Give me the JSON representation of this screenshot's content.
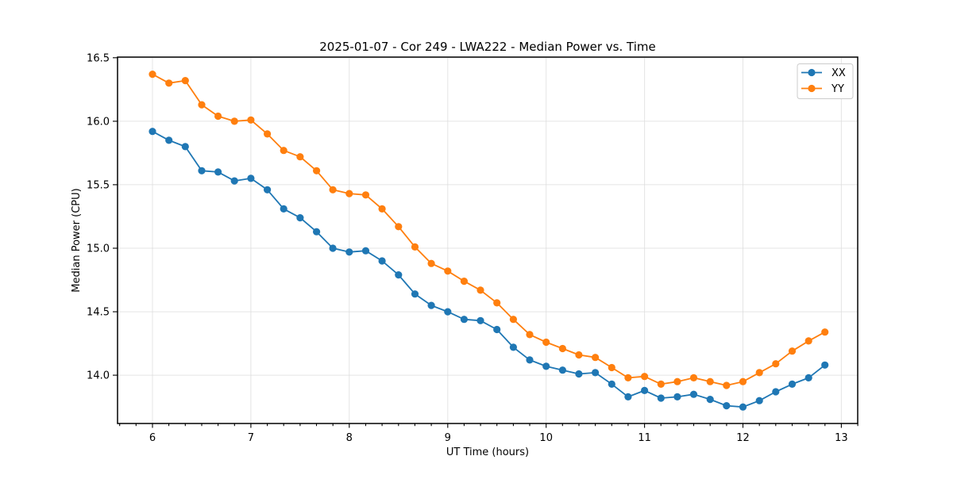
{
  "chart_data": {
    "type": "line",
    "title": "2025-01-07 - Cor 249 - LWA222 - Median Power vs. Time",
    "xlabel": "UT Time (hours)",
    "ylabel": "Median Power (CPU)",
    "xlim": [
      5.645,
      13.166
    ],
    "ylim": [
      13.62,
      16.505
    ],
    "x_tick_labels": [
      "6",
      "7",
      "8",
      "9",
      "10",
      "11",
      "12",
      "13"
    ],
    "y_tick_labels": [
      "14.0",
      "14.5",
      "15.0",
      "15.5",
      "16.0",
      "16.5"
    ],
    "minor_x_tick_step": 0.16667,
    "grid": true,
    "legend_position": "upper right",
    "marker": "circle",
    "x": [
      6.0,
      6.167,
      6.333,
      6.5,
      6.667,
      6.833,
      7.0,
      7.167,
      7.333,
      7.5,
      7.667,
      7.833,
      8.0,
      8.167,
      8.333,
      8.5,
      8.667,
      8.833,
      9.0,
      9.167,
      9.333,
      9.5,
      9.667,
      9.833,
      10.0,
      10.167,
      10.333,
      10.5,
      10.667,
      10.833,
      11.0,
      11.167,
      11.333,
      11.5,
      11.667,
      11.833,
      12.0,
      12.167,
      12.333,
      12.5,
      12.667,
      12.833
    ],
    "series": [
      {
        "name": "XX",
        "color": "#1f77b4",
        "values": [
          15.92,
          15.85,
          15.8,
          15.61,
          15.6,
          15.53,
          15.55,
          15.46,
          15.31,
          15.24,
          15.13,
          15.0,
          14.97,
          14.98,
          14.9,
          14.79,
          14.64,
          14.55,
          14.5,
          14.44,
          14.43,
          14.36,
          14.22,
          14.12,
          14.07,
          14.04,
          14.01,
          14.02,
          13.93,
          13.83,
          13.88,
          13.82,
          13.83,
          13.85,
          13.81,
          13.76,
          13.75,
          13.8,
          13.87,
          13.93,
          13.98,
          14.08
        ]
      },
      {
        "name": "YY",
        "color": "#ff7f0e",
        "values": [
          16.37,
          16.3,
          16.32,
          16.13,
          16.04,
          16.0,
          16.01,
          15.9,
          15.77,
          15.72,
          15.61,
          15.46,
          15.43,
          15.42,
          15.31,
          15.17,
          15.01,
          14.88,
          14.82,
          14.74,
          14.67,
          14.57,
          14.44,
          14.32,
          14.26,
          14.21,
          14.16,
          14.14,
          14.06,
          13.98,
          13.99,
          13.93,
          13.95,
          13.98,
          13.95,
          13.92,
          13.95,
          14.02,
          14.09,
          14.19,
          14.27,
          14.34
        ]
      }
    ]
  }
}
